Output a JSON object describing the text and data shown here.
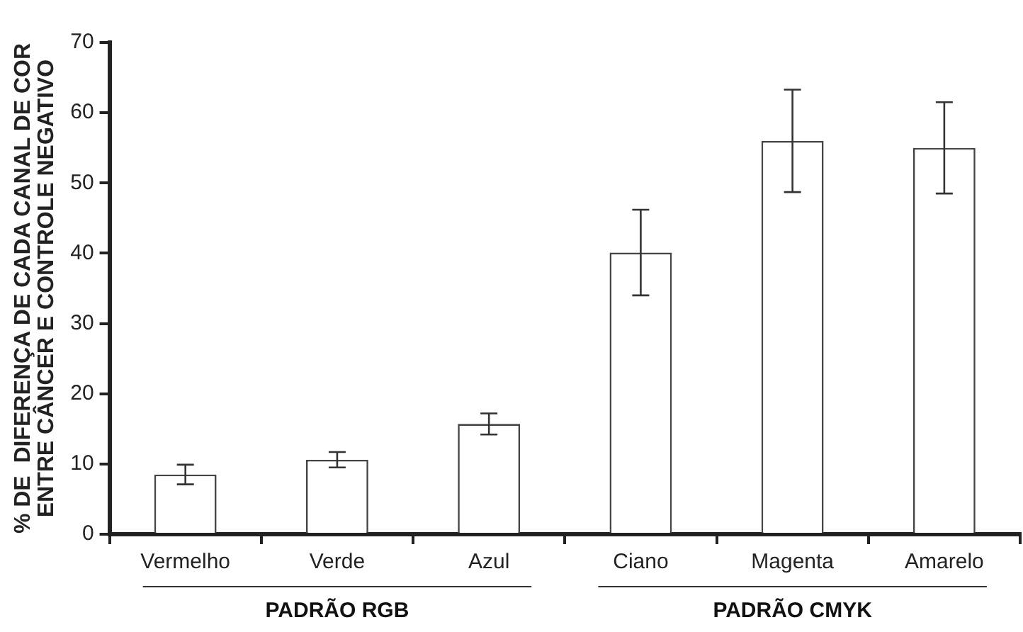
{
  "chart_data": {
    "type": "bar",
    "ylabel": "% DE  DIFERENÇA DE CADA CANAL DE COR\nENTRE CÂNCER E CONTROLE NEGATIVO",
    "categories": [
      "Vermelho",
      "Verde",
      "Azul",
      "Ciano",
      "Magenta",
      "Amarelo"
    ],
    "values": [
      8.5,
      10.6,
      15.7,
      40.1,
      56,
      55
    ],
    "errors": [
      1.4,
      1.1,
      1.5,
      6.1,
      7.3,
      6.5
    ],
    "color": "#ffffff",
    "ylim": [
      0,
      70
    ],
    "yticks": [
      0,
      10,
      20,
      30,
      40,
      50,
      60,
      70
    ],
    "grid": false,
    "legend": false,
    "annotations": [
      "PADRÃO RGB",
      "PADRÃO CMYK"
    ]
  }
}
